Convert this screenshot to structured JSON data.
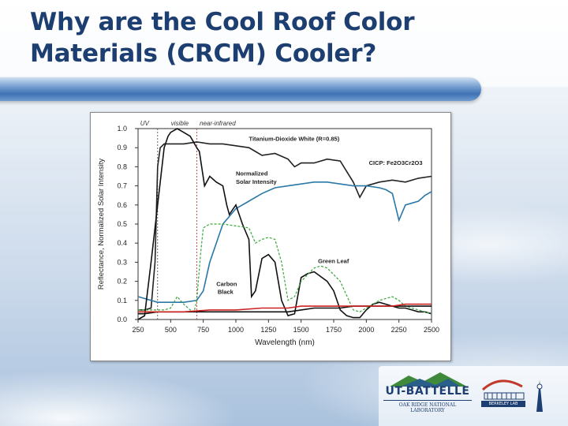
{
  "slide": {
    "title_line1": "Why are the Cool Roof Color",
    "title_line2": "Materials (CRCM) Cooler?"
  },
  "logos": {
    "ut_battelle": "UT-BATTELLE",
    "ornl": "OAK RIDGE NATIONAL LABORATORY",
    "berkeley": "BERKELEY LAB"
  },
  "colors": {
    "title": "#1d3e70",
    "titanium": "#222222",
    "cicp": "#2a78a8",
    "solar": "#111111",
    "green_leaf": "#3aa83a",
    "carbon_black": "#111111",
    "red_series": "#cc2222"
  },
  "chart_data": {
    "type": "line",
    "title": "",
    "xlabel": "Wavelength (nm)",
    "ylabel": "Reflectance, Normalized Solar Intensity",
    "xlim": [
      250,
      2500
    ],
    "ylim": [
      0.0,
      1.0
    ],
    "x_ticks": [
      250,
      500,
      750,
      1000,
      1250,
      1500,
      1750,
      2000,
      2250,
      2500
    ],
    "y_ticks": [
      0.0,
      0.1,
      0.2,
      0.3,
      0.4,
      0.5,
      0.6,
      0.7,
      0.8,
      0.9,
      1.0
    ],
    "x_tick_labels": [
      "250",
      "500",
      "750",
      "1000",
      "1250",
      "1500",
      "1750",
      "2000",
      "2250",
      "2500"
    ],
    "y_tick_labels": [
      "0.0",
      "0.1",
      "0.2",
      "0.3",
      "0.4",
      "0.5",
      "0.6",
      "0.7",
      "0.8",
      "0.9",
      "1.0"
    ],
    "grid": false,
    "region_labels": [
      {
        "text": "UV",
        "x": 300
      },
      {
        "text": "visible",
        "x": 570
      },
      {
        "text": "near-infrared",
        "x": 860
      }
    ],
    "region_boundaries": [
      400,
      700
    ],
    "series": [
      {
        "label": "Titanium-Dioxide White (R=0.85)",
        "color_key": "titanium",
        "style": "solid",
        "x": [
          250,
          300,
          350,
          380,
          400,
          420,
          450,
          500,
          600,
          700,
          800,
          900,
          1000,
          1100,
          1150,
          1200,
          1300,
          1400,
          1450,
          1500,
          1600,
          1700,
          1800,
          1900,
          1950,
          2000,
          2100,
          2200,
          2300,
          2400,
          2500
        ],
        "y": [
          0.05,
          0.05,
          0.06,
          0.3,
          0.8,
          0.9,
          0.92,
          0.92,
          0.92,
          0.93,
          0.92,
          0.92,
          0.91,
          0.9,
          0.88,
          0.86,
          0.87,
          0.84,
          0.8,
          0.82,
          0.82,
          0.84,
          0.83,
          0.72,
          0.64,
          0.7,
          0.72,
          0.73,
          0.72,
          0.74,
          0.75
        ]
      },
      {
        "label": "CICP: Fe2O3Cr2O3",
        "color_key": "cicp",
        "style": "solid",
        "x": [
          250,
          400,
          500,
          600,
          700,
          750,
          800,
          900,
          1000,
          1100,
          1200,
          1300,
          1400,
          1500,
          1600,
          1700,
          1800,
          1900,
          2000,
          2100,
          2150,
          2200,
          2250,
          2300,
          2400,
          2450,
          2500
        ],
        "y": [
          0.12,
          0.09,
          0.09,
          0.09,
          0.1,
          0.15,
          0.3,
          0.5,
          0.58,
          0.62,
          0.66,
          0.69,
          0.7,
          0.71,
          0.72,
          0.72,
          0.71,
          0.7,
          0.7,
          0.69,
          0.68,
          0.66,
          0.52,
          0.6,
          0.62,
          0.65,
          0.67
        ]
      },
      {
        "label": "Normalized Solar Intensity",
        "color_key": "solar",
        "style": "solid",
        "x": [
          250,
          300,
          350,
          400,
          450,
          480,
          500,
          550,
          600,
          650,
          700,
          720,
          760,
          800,
          850,
          900,
          930,
          950,
          1000,
          1050,
          1100,
          1120,
          1150,
          1200,
          1250,
          1300,
          1350,
          1400,
          1450,
          1500,
          1550,
          1600,
          1700,
          1750,
          1800,
          1850,
          1900,
          1950,
          2000,
          2050,
          2100,
          2150,
          2200,
          2250,
          2300,
          2350,
          2400,
          2450,
          2500
        ],
        "y": [
          0.0,
          0.02,
          0.3,
          0.6,
          0.9,
          0.96,
          0.98,
          1.0,
          0.98,
          0.96,
          0.9,
          0.88,
          0.7,
          0.75,
          0.72,
          0.7,
          0.6,
          0.55,
          0.6,
          0.5,
          0.42,
          0.12,
          0.15,
          0.32,
          0.34,
          0.3,
          0.1,
          0.02,
          0.03,
          0.22,
          0.24,
          0.25,
          0.2,
          0.15,
          0.05,
          0.02,
          0.01,
          0.01,
          0.05,
          0.08,
          0.09,
          0.08,
          0.07,
          0.06,
          0.06,
          0.05,
          0.04,
          0.04,
          0.03
        ]
      },
      {
        "label": "Green Leaf",
        "color_key": "green_leaf",
        "style": "dashed",
        "x": [
          250,
          400,
          450,
          500,
          550,
          600,
          650,
          680,
          700,
          730,
          750,
          800,
          900,
          1000,
          1100,
          1150,
          1200,
          1250,
          1300,
          1350,
          1400,
          1450,
          1500,
          1600,
          1650,
          1700,
          1800,
          1900,
          1950,
          2000,
          2100,
          2200,
          2250,
          2300,
          2400,
          2500
        ],
        "y": [
          0.05,
          0.05,
          0.05,
          0.06,
          0.12,
          0.08,
          0.05,
          0.04,
          0.1,
          0.35,
          0.48,
          0.5,
          0.5,
          0.49,
          0.48,
          0.4,
          0.42,
          0.43,
          0.42,
          0.3,
          0.1,
          0.12,
          0.2,
          0.27,
          0.28,
          0.27,
          0.2,
          0.05,
          0.04,
          0.06,
          0.1,
          0.12,
          0.1,
          0.07,
          0.05,
          0.03
        ]
      },
      {
        "label": "Carbon Black",
        "color_key": "carbon_black",
        "style": "solid",
        "x": [
          250,
          300,
          400,
          500,
          700,
          1000,
          1200,
          1300,
          1400,
          1500,
          1600,
          1700,
          1800,
          1900,
          2000,
          2100,
          2200,
          2300,
          2400,
          2500
        ],
        "y": [
          0.03,
          0.03,
          0.04,
          0.04,
          0.04,
          0.04,
          0.04,
          0.04,
          0.04,
          0.05,
          0.06,
          0.06,
          0.06,
          0.07,
          0.07,
          0.07,
          0.07,
          0.07,
          0.07,
          0.07
        ]
      },
      {
        "label": "",
        "color_key": "red_series",
        "style": "solid",
        "x": [
          250,
          400,
          600,
          800,
          1000,
          1200,
          1400,
          1500,
          1600,
          1700,
          1800,
          1900,
          2000,
          2100,
          2200,
          2300,
          2400,
          2500
        ],
        "y": [
          0.04,
          0.04,
          0.04,
          0.05,
          0.05,
          0.06,
          0.06,
          0.07,
          0.07,
          0.07,
          0.07,
          0.07,
          0.07,
          0.07,
          0.07,
          0.08,
          0.08,
          0.08
        ]
      }
    ],
    "annotations": [
      {
        "text": "Titanium-Dioxide White (R=0.85)",
        "x": 1100,
        "y": 0.935
      },
      {
        "text": "Normalized",
        "x": 1000,
        "y": 0.755
      },
      {
        "text": "Solar Intensity",
        "x": 1000,
        "y": 0.71
      },
      {
        "text": "CICP: Fe2O3Cr2O3",
        "x": 2020,
        "y": 0.81
      },
      {
        "text": "Green Leaf",
        "x": 1630,
        "y": 0.295
      },
      {
        "text": "Carbon",
        "x": 850,
        "y": 0.175
      },
      {
        "text": "Black",
        "x": 860,
        "y": 0.135
      }
    ]
  }
}
